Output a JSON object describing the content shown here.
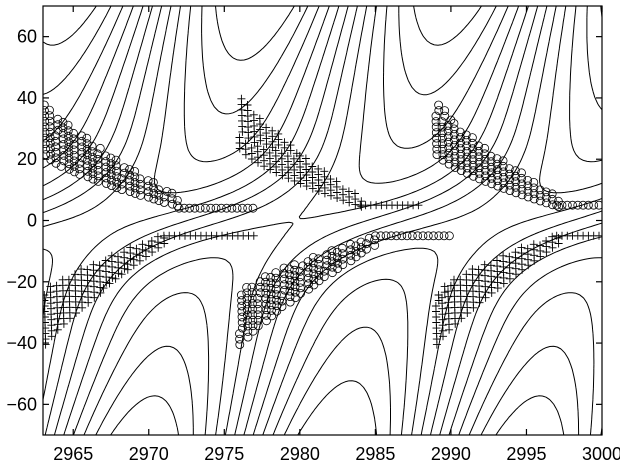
{
  "chart_data": {
    "type": "contour",
    "title": "",
    "xlabel": "",
    "ylabel": "",
    "xlim": [
      2963,
      3000
    ],
    "ylim": [
      -70,
      70
    ],
    "x_ticks": [
      2965,
      2970,
      2975,
      2980,
      2985,
      2990,
      2995,
      3000
    ],
    "y_ticks": [
      -60,
      -40,
      -20,
      0,
      20,
      40,
      60
    ],
    "x_tick_labels": [
      "2965",
      "2970",
      "2975",
      "2980",
      "2985",
      "2990",
      "2995",
      "3000"
    ],
    "y_tick_labels": [
      "−60",
      "−40",
      "−20",
      "0",
      "20",
      "40",
      "60"
    ],
    "grid": false,
    "legend": "none",
    "contour_field": {
      "period": 25.5,
      "phase_x": 2967,
      "contour_levels": [
        -0.85,
        -0.7,
        -0.55,
        -0.4,
        -0.25,
        -0.1,
        0.05,
        0.2,
        0.35,
        0.5,
        0.65,
        0.8
      ],
      "negative_style": "dashed",
      "positive_style": "solid"
    },
    "marker_bands": [
      {
        "marker": "circle",
        "x_start": 2963,
        "x_end": 2972,
        "y_start": 30,
        "y_end": 6,
        "x_end_tail": 2977,
        "tail_y": 4
      },
      {
        "marker": "plus",
        "x_start": 2976,
        "x_end": 2984,
        "y_start": 32,
        "y_end": 6,
        "x_end_tail": 2988,
        "tail_y": 5
      },
      {
        "marker": "circle",
        "x_start": 2989,
        "x_end": 2997,
        "y_start": 30,
        "y_end": 6,
        "x_end_tail": 3000,
        "tail_y": 5
      },
      {
        "marker": "plus",
        "x_start": 2963,
        "x_end": 2971,
        "y_start": -32,
        "y_end": -6,
        "x_end_tail": 2977,
        "tail_y": -5
      },
      {
        "marker": "circle",
        "x_start": 2976,
        "x_end": 2985,
        "y_start": -32,
        "y_end": -6,
        "x_end_tail": 2990,
        "tail_y": -5
      },
      {
        "marker": "plus",
        "x_start": 2989,
        "x_end": 2997,
        "y_start": -32,
        "y_end": -6,
        "x_end_tail": 3000,
        "tail_y": -5
      }
    ]
  }
}
